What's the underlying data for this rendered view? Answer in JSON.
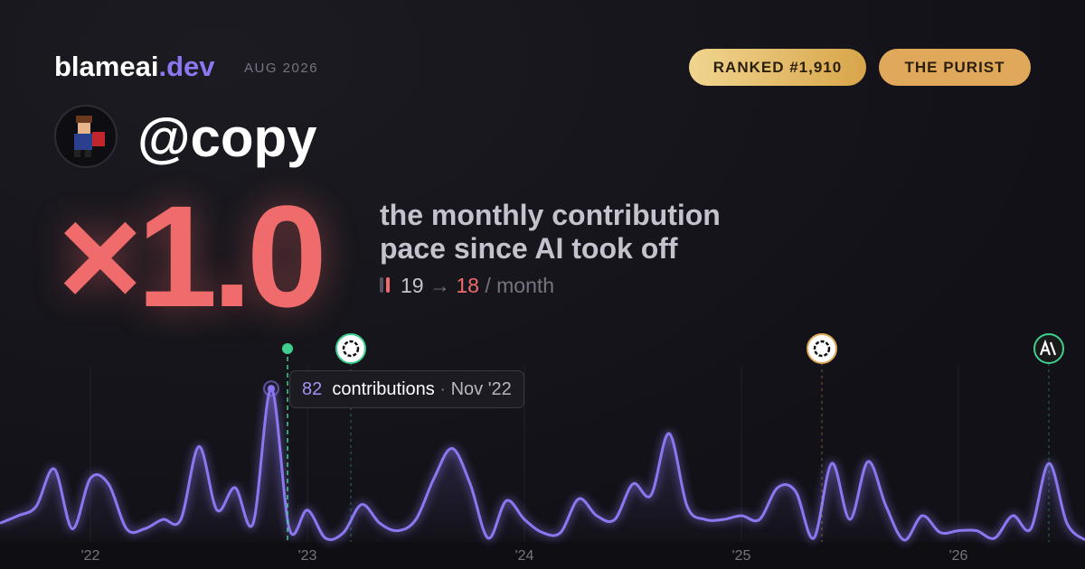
{
  "header": {
    "brand": "blameai",
    "brand_tld": ".dev",
    "period": "AUG 2026",
    "rank_badge": "RANKED #1,910",
    "persona_badge": "THE PURIST"
  },
  "profile": {
    "handle": "@copy"
  },
  "hero": {
    "multiplier": "×1.0",
    "caption_line1": "the monthly contribution",
    "caption_line2": "pace since AI took off",
    "before": 19,
    "arrow": "→",
    "after": 18,
    "unit": "/ month"
  },
  "chart_data": {
    "type": "line",
    "x": [
      "2021-08",
      "2021-09",
      "2021-10",
      "2021-11",
      "2021-12",
      "2022-01",
      "2022-02",
      "2022-03",
      "2022-04",
      "2022-05",
      "2022-06",
      "2022-07",
      "2022-08",
      "2022-09",
      "2022-10",
      "2022-11",
      "2022-12",
      "2023-01",
      "2023-02",
      "2023-03",
      "2023-04",
      "2023-05",
      "2023-06",
      "2023-07",
      "2023-08",
      "2023-09",
      "2023-10",
      "2023-11",
      "2023-12",
      "2024-01",
      "2024-02",
      "2024-03",
      "2024-04",
      "2024-05",
      "2024-06",
      "2024-07",
      "2024-08",
      "2024-09",
      "2024-10",
      "2024-11",
      "2024-12",
      "2025-01",
      "2025-02",
      "2025-03",
      "2025-04",
      "2025-05",
      "2025-06",
      "2025-07",
      "2025-08",
      "2025-09",
      "2025-10",
      "2025-11",
      "2025-12",
      "2026-01",
      "2026-02",
      "2026-03",
      "2026-04",
      "2026-05",
      "2026-06",
      "2026-07",
      "2026-08"
    ],
    "series": [
      {
        "name": "contributions",
        "color": "#8b78f0",
        "values": [
          10,
          14,
          19,
          39,
          7,
          34,
          31,
          7,
          7,
          12,
          12,
          51,
          17,
          29,
          10,
          82,
          7,
          17,
          2,
          5,
          20,
          10,
          6,
          12,
          34,
          50,
          31,
          2,
          22,
          12,
          5,
          5,
          23,
          14,
          12,
          31,
          25,
          58,
          19,
          12,
          12,
          14,
          12,
          29,
          27,
          2,
          42,
          12,
          43,
          19,
          1,
          14,
          5,
          6,
          6,
          2,
          14,
          7,
          42,
          10,
          1
        ]
      }
    ],
    "ylim": [
      0,
      100
    ],
    "xticks": [
      {
        "value": "2022-01",
        "label": "'22"
      },
      {
        "value": "2023-01",
        "label": "'23"
      },
      {
        "value": "2024-01",
        "label": "'24"
      },
      {
        "value": "2025-01",
        "label": "'25"
      },
      {
        "value": "2026-01",
        "label": "'26"
      }
    ],
    "grid": true,
    "tooltip": {
      "unit": "contributions",
      "sep": "·",
      "date": "Nov '22"
    }
  }
}
